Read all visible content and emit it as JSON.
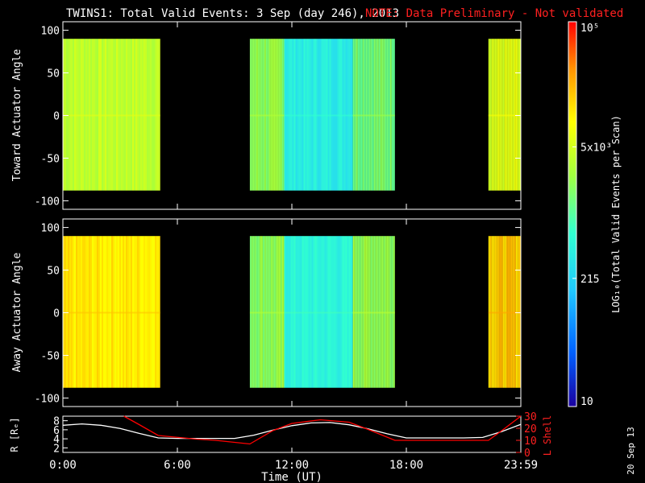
{
  "title": {
    "main": "TWINS1: Total Valid Events:  3 Sep (day 246), 2013",
    "note": "NOTE: Data Preliminary - Not validated"
  },
  "colors": {
    "background": "#000000",
    "text": "#ffffff",
    "note": "#ff0000",
    "r_line": "#ffffff",
    "lshell_line": "#ff0000",
    "colormap": [
      "#1a00a0",
      "#0060ff",
      "#20c8ff",
      "#30ffd0",
      "#a0ff40",
      "#ffff00",
      "#ff9000",
      "#ff0000"
    ]
  },
  "footer_date": "20 Sep 13",
  "chart_data": [
    {
      "type": "heatmap",
      "name": "toward",
      "ylabel": "Toward Actuator Angle",
      "ylim": [
        -110,
        110
      ],
      "yticks": [
        "100",
        "50",
        "0",
        "-50",
        "-100"
      ],
      "ytick_values": [
        100,
        50,
        0,
        -50,
        -100
      ],
      "xlim_hours": [
        0,
        24
      ],
      "xticks": [
        "0:00",
        "6:00",
        "12:00",
        "18:00",
        "23:59"
      ],
      "angle_range": [
        -88,
        90
      ],
      "intervals": [
        {
          "start_hour": 0.0,
          "end_hour": 5.1,
          "log_level": 0.62
        },
        {
          "start_hour": 9.8,
          "end_hour": 11.6,
          "log_level": 0.55
        },
        {
          "start_hour": 11.6,
          "end_hour": 15.2,
          "log_level": 0.38
        },
        {
          "start_hour": 15.2,
          "end_hour": 17.4,
          "log_level": 0.52
        },
        {
          "start_hour": 22.3,
          "end_hour": 24.0,
          "log_level": 0.66
        }
      ]
    },
    {
      "type": "heatmap",
      "name": "away",
      "ylabel": "Away Actuator Angle",
      "ylim": [
        -110,
        110
      ],
      "yticks": [
        "100",
        "50",
        "0",
        "-50",
        "-100"
      ],
      "ytick_values": [
        100,
        50,
        0,
        -50,
        -100
      ],
      "xlim_hours": [
        0,
        24
      ],
      "xticks": [
        "0:00",
        "6:00",
        "12:00",
        "18:00",
        "23:59"
      ],
      "angle_range": [
        -88,
        90
      ],
      "intervals": [
        {
          "start_hour": 0.0,
          "end_hour": 5.1,
          "log_level": 0.74
        },
        {
          "start_hour": 9.8,
          "end_hour": 11.6,
          "log_level": 0.55
        },
        {
          "start_hour": 11.6,
          "end_hour": 15.2,
          "log_level": 0.4
        },
        {
          "start_hour": 15.2,
          "end_hour": 17.4,
          "log_level": 0.56
        },
        {
          "start_hour": 22.3,
          "end_hour": 24.0,
          "log_level": 0.78
        }
      ]
    },
    {
      "type": "line",
      "name": "orbit",
      "xlabel": "Time (UT)",
      "ylabel_left": "R [Rₑ]",
      "ylabel_right": "L Shell",
      "ylim_left": [
        1,
        9
      ],
      "ylim_right": [
        0,
        30
      ],
      "yticks_left": [
        "8",
        "6",
        "4",
        "2"
      ],
      "ytick_values_left": [
        8,
        6,
        4,
        2
      ],
      "yticks_right": [
        "30",
        "20",
        "10",
        "0"
      ],
      "ytick_values_right": [
        30,
        20,
        10,
        0
      ],
      "xticks": [
        "0:00",
        "6:00",
        "12:00",
        "18:00",
        "23:59"
      ],
      "xtick_hours": [
        0,
        6,
        12,
        18,
        24
      ],
      "series": [
        {
          "name": "R",
          "axis": "left",
          "x": [
            0,
            1,
            2,
            3,
            4,
            5,
            6,
            7,
            8,
            9,
            10,
            11,
            12,
            13,
            14,
            15,
            16,
            17,
            18,
            19,
            20,
            21,
            22,
            23,
            24
          ],
          "y": [
            7.0,
            7.3,
            7.0,
            6.3,
            5.2,
            4.2,
            4.1,
            4.1,
            4.1,
            4.1,
            4.8,
            5.9,
            6.9,
            7.5,
            7.6,
            7.1,
            6.2,
            5.1,
            4.2,
            4.2,
            4.2,
            4.2,
            4.3,
            5.6,
            7.2
          ]
        },
        {
          "name": "L Shell",
          "axis": "right",
          "x": [
            3.2,
            4.0,
            5.0,
            7.0,
            8.0,
            9.8,
            11.0,
            12.0,
            13.5,
            15.0,
            16.0,
            17.4,
            19.0,
            21.0,
            22.3,
            23.0,
            24.0
          ],
          "y": [
            30,
            23,
            14,
            11,
            10,
            7,
            18,
            24,
            27,
            25,
            19,
            10,
            10,
            10,
            10,
            18,
            30
          ]
        }
      ]
    },
    {
      "type": "heatmap",
      "name": "colorbar",
      "ylabel": "LOG₁₀(Total Valid Events per Scan)",
      "ticks": [
        "10⁵",
        "5x10³",
        "215",
        "10"
      ],
      "tick_values": [
        100000,
        5000,
        215,
        10
      ],
      "range": [
        10,
        100000
      ],
      "scale": "log"
    }
  ]
}
